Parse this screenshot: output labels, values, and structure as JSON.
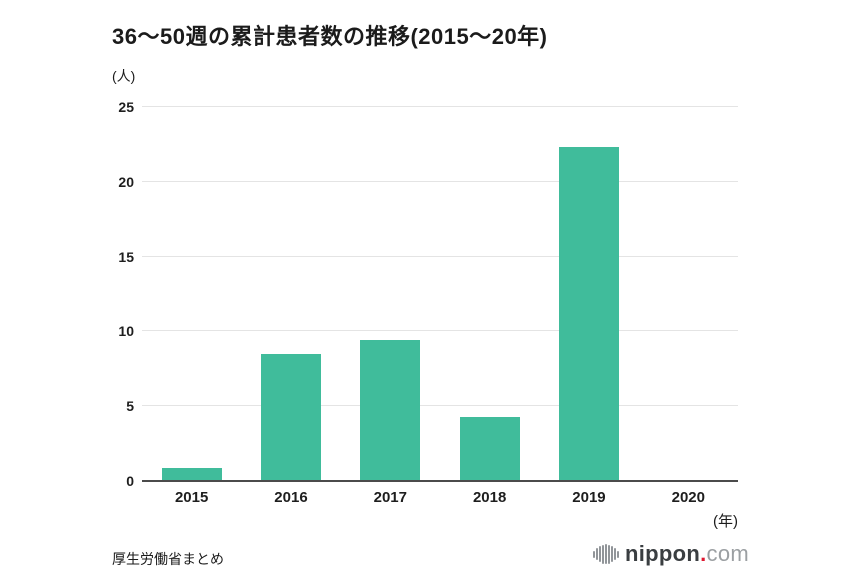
{
  "title": "36〜50週の累計患者数の推移(2015〜20年)",
  "y_unit_label": "(人)",
  "x_unit_label": "(年)",
  "source_note": "厚生労働省まとめ",
  "logo": {
    "name": "nippon.com",
    "text_nippon": "nippon",
    "text_dot": ".",
    "text_com": "com"
  },
  "colors": {
    "bar": "#40bc9b",
    "gridline": "#e4e4e4",
    "axis_line": "#4b4b4b",
    "text": "#1b1b1b",
    "background": "#ffffff",
    "logo_dot_red": "#df1730",
    "logo_gray": "#9b9fa2"
  },
  "chart_data": {
    "type": "bar",
    "title": "36〜50週の累計患者数の推移(2015〜20年)",
    "categories": [
      "2015",
      "2016",
      "2017",
      "2018",
      "2019",
      "2020"
    ],
    "values": [
      0.9,
      8.5,
      9.4,
      4.3,
      22.3,
      0
    ],
    "xlabel": "(年)",
    "ylabel": "(人)",
    "ylim": [
      0,
      25
    ],
    "yticks": [
      0,
      5,
      10,
      15,
      20,
      25
    ],
    "grid": true,
    "legend": false,
    "bar_color": "#40bc9b"
  }
}
